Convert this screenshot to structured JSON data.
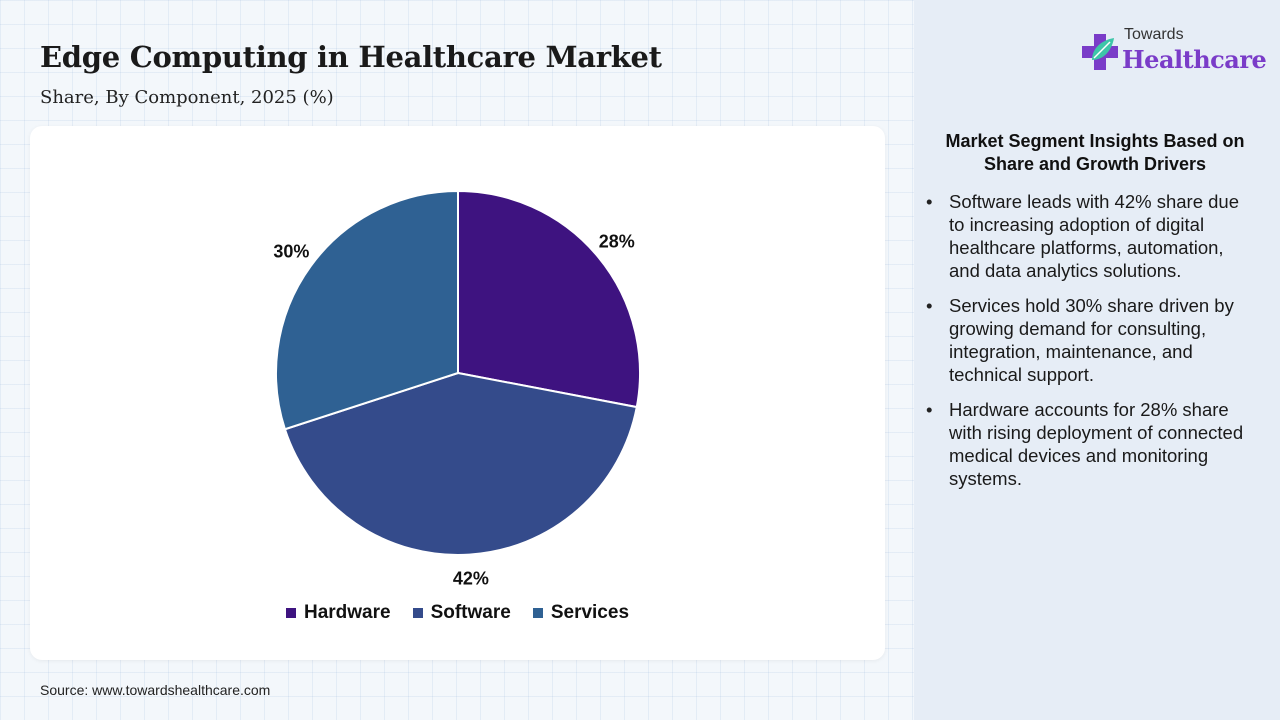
{
  "header": {
    "title": "Edge Computing in Healthcare Market",
    "subtitle": "Share, By Component, 2025 (%)"
  },
  "logo": {
    "top": "Towards",
    "main": "Healthcare"
  },
  "chart_data": {
    "type": "pie",
    "categories": [
      "Hardware",
      "Software",
      "Services"
    ],
    "values": [
      28,
      42,
      30
    ],
    "labels": [
      "28%",
      "42%",
      "30%"
    ],
    "colors": [
      "#3e1380",
      "#344b8b",
      "#2f6193"
    ],
    "legend_position": "bottom",
    "start_angle": "top, clockwise"
  },
  "insights": {
    "title": "Market Segment Insights Based on Share and Growth Drivers",
    "items": [
      "Software leads with 42% share due to increasing adoption of digital healthcare platforms, automation, and data analytics solutions.",
      "Services hold 30% share driven by growing demand for consulting, integration, maintenance, and technical support.",
      "Hardware accounts for 28% share with rising deployment of connected medical devices and monitoring systems."
    ]
  },
  "source": "Source: www.towardshealthcare.com"
}
